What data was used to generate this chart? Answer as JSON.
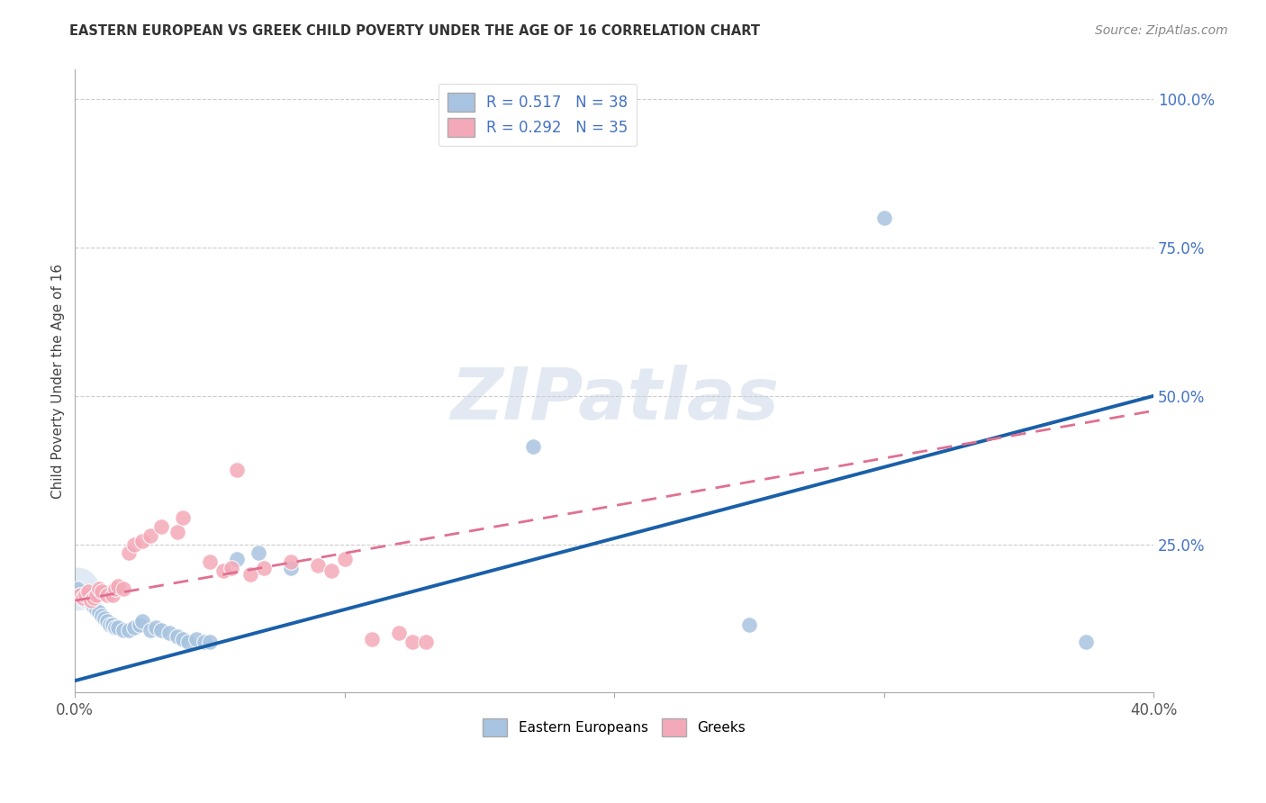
{
  "title": "EASTERN EUROPEAN VS GREEK CHILD POVERTY UNDER THE AGE OF 16 CORRELATION CHART",
  "source": "Source: ZipAtlas.com",
  "ylabel": "Child Poverty Under the Age of 16",
  "xlim": [
    0.0,
    0.4
  ],
  "ylim": [
    0.0,
    1.05
  ],
  "R_eastern": 0.517,
  "N_eastern": 38,
  "R_greek": 0.292,
  "N_greek": 35,
  "eastern_color": "#a8c4e0",
  "greek_color": "#f4a9b8",
  "eastern_line_color": "#1a5fa8",
  "greek_line_color": "#e07090",
  "watermark": "ZIPatlas",
  "eastern_line_x0": 0.0,
  "eastern_line_y0": 0.02,
  "eastern_line_x1": 0.4,
  "eastern_line_y1": 0.5,
  "greek_line_x0": 0.0,
  "greek_line_y0": 0.155,
  "greek_line_x1": 0.4,
  "greek_line_y1": 0.475,
  "eastern_points": [
    [
      0.001,
      0.175
    ],
    [
      0.002,
      0.165
    ],
    [
      0.003,
      0.16
    ],
    [
      0.004,
      0.155
    ],
    [
      0.005,
      0.155
    ],
    [
      0.006,
      0.15
    ],
    [
      0.007,
      0.145
    ],
    [
      0.008,
      0.14
    ],
    [
      0.009,
      0.135
    ],
    [
      0.01,
      0.13
    ],
    [
      0.011,
      0.125
    ],
    [
      0.012,
      0.12
    ],
    [
      0.013,
      0.115
    ],
    [
      0.014,
      0.115
    ],
    [
      0.015,
      0.11
    ],
    [
      0.016,
      0.11
    ],
    [
      0.018,
      0.105
    ],
    [
      0.02,
      0.105
    ],
    [
      0.022,
      0.11
    ],
    [
      0.024,
      0.115
    ],
    [
      0.025,
      0.12
    ],
    [
      0.028,
      0.105
    ],
    [
      0.03,
      0.11
    ],
    [
      0.032,
      0.105
    ],
    [
      0.035,
      0.1
    ],
    [
      0.038,
      0.095
    ],
    [
      0.04,
      0.09
    ],
    [
      0.042,
      0.085
    ],
    [
      0.045,
      0.09
    ],
    [
      0.048,
      0.085
    ],
    [
      0.05,
      0.085
    ],
    [
      0.06,
      0.225
    ],
    [
      0.068,
      0.235
    ],
    [
      0.08,
      0.21
    ],
    [
      0.17,
      0.415
    ],
    [
      0.25,
      0.115
    ],
    [
      0.3,
      0.8
    ],
    [
      0.375,
      0.085
    ]
  ],
  "greek_points": [
    [
      0.002,
      0.165
    ],
    [
      0.003,
      0.16
    ],
    [
      0.004,
      0.165
    ],
    [
      0.005,
      0.17
    ],
    [
      0.006,
      0.155
    ],
    [
      0.007,
      0.16
    ],
    [
      0.008,
      0.165
    ],
    [
      0.009,
      0.175
    ],
    [
      0.01,
      0.17
    ],
    [
      0.012,
      0.165
    ],
    [
      0.014,
      0.165
    ],
    [
      0.015,
      0.175
    ],
    [
      0.016,
      0.18
    ],
    [
      0.018,
      0.175
    ],
    [
      0.02,
      0.235
    ],
    [
      0.022,
      0.25
    ],
    [
      0.025,
      0.255
    ],
    [
      0.028,
      0.265
    ],
    [
      0.032,
      0.28
    ],
    [
      0.038,
      0.27
    ],
    [
      0.04,
      0.295
    ],
    [
      0.05,
      0.22
    ],
    [
      0.055,
      0.205
    ],
    [
      0.058,
      0.21
    ],
    [
      0.06,
      0.375
    ],
    [
      0.065,
      0.2
    ],
    [
      0.07,
      0.21
    ],
    [
      0.08,
      0.22
    ],
    [
      0.09,
      0.215
    ],
    [
      0.095,
      0.205
    ],
    [
      0.1,
      0.225
    ],
    [
      0.11,
      0.09
    ],
    [
      0.12,
      0.1
    ],
    [
      0.125,
      0.085
    ],
    [
      0.13,
      0.085
    ]
  ]
}
